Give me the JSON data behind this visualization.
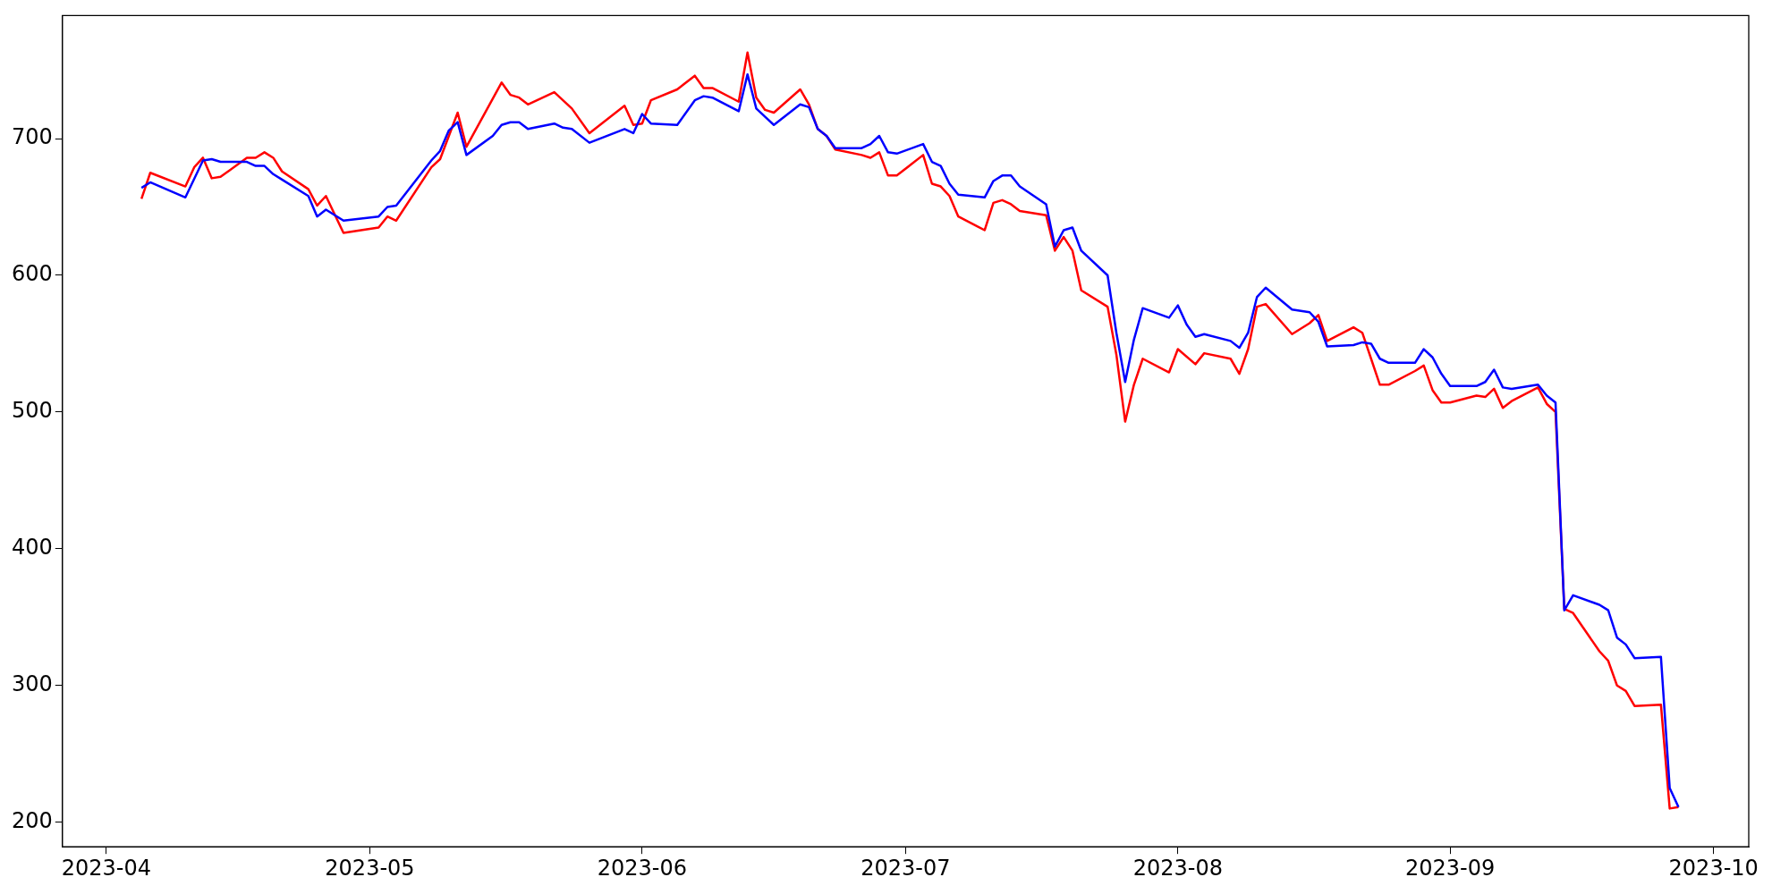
{
  "chart_data": {
    "type": "line",
    "xlim": [
      "2023-03-27",
      "2023-10-05"
    ],
    "ylim": [
      182,
      790
    ],
    "xticks": [
      "2023-04",
      "2023-05",
      "2023-06",
      "2023-07",
      "2023-08",
      "2023-09",
      "2023-10"
    ],
    "yticks": [
      200,
      300,
      400,
      500,
      600,
      700
    ],
    "marker": "none",
    "line_style": "solid",
    "series": [
      {
        "color": "#ff0000",
        "x": [
          "2023-04-05",
          "2023-04-06",
          "2023-04-10",
          "2023-04-11",
          "2023-04-12",
          "2023-04-13",
          "2023-04-14",
          "2023-04-17",
          "2023-04-18",
          "2023-04-19",
          "2023-04-20",
          "2023-04-21",
          "2023-04-24",
          "2023-04-25",
          "2023-04-26",
          "2023-04-28",
          "2023-05-02",
          "2023-05-03",
          "2023-05-04",
          "2023-05-08",
          "2023-05-09",
          "2023-05-11",
          "2023-05-12",
          "2023-05-16",
          "2023-05-17",
          "2023-05-18",
          "2023-05-19",
          "2023-05-22",
          "2023-05-24",
          "2023-05-26",
          "2023-05-30",
          "2023-05-31",
          "2023-06-01",
          "2023-06-02",
          "2023-06-05",
          "2023-06-07",
          "2023-06-08",
          "2023-06-09",
          "2023-06-12",
          "2023-06-13",
          "2023-06-14",
          "2023-06-15",
          "2023-06-16",
          "2023-06-19",
          "2023-06-20",
          "2023-06-21",
          "2023-06-22",
          "2023-06-23",
          "2023-06-26",
          "2023-06-27",
          "2023-06-28",
          "2023-06-29",
          "2023-06-30",
          "2023-07-03",
          "2023-07-04",
          "2023-07-05",
          "2023-07-06",
          "2023-07-07",
          "2023-07-10",
          "2023-07-11",
          "2023-07-12",
          "2023-07-13",
          "2023-07-14",
          "2023-07-17",
          "2023-07-18",
          "2023-07-19",
          "2023-07-20",
          "2023-07-21",
          "2023-07-24",
          "2023-07-25",
          "2023-07-26",
          "2023-07-27",
          "2023-07-28",
          "2023-07-31",
          "2023-08-01",
          "2023-08-03",
          "2023-08-04",
          "2023-08-07",
          "2023-08-08",
          "2023-08-09",
          "2023-08-10",
          "2023-08-11",
          "2023-08-14",
          "2023-08-16",
          "2023-08-17",
          "2023-08-18",
          "2023-08-21",
          "2023-08-22",
          "2023-08-23",
          "2023-08-24",
          "2023-08-25",
          "2023-08-28",
          "2023-08-29",
          "2023-08-30",
          "2023-08-31",
          "2023-09-01",
          "2023-09-04",
          "2023-09-05",
          "2023-09-06",
          "2023-09-07",
          "2023-09-08",
          "2023-09-11",
          "2023-09-12",
          "2023-09-13",
          "2023-09-14",
          "2023-09-15",
          "2023-09-18",
          "2023-09-19",
          "2023-09-20",
          "2023-09-21",
          "2023-09-22",
          "2023-09-25",
          "2023-09-26",
          "2023-09-27"
        ],
        "values": [
          656,
          675,
          665,
          679,
          686,
          671,
          672,
          686,
          686,
          690,
          686,
          676,
          663,
          651,
          658,
          631,
          635,
          643,
          640,
          679,
          685,
          719,
          694,
          741,
          732,
          730,
          725,
          734,
          722,
          704,
          724,
          710,
          711,
          728,
          736,
          746,
          737,
          737,
          727,
          763,
          730,
          721,
          719,
          736,
          725,
          707,
          702,
          692,
          688,
          686,
          690,
          673,
          673,
          688,
          667,
          665,
          658,
          643,
          633,
          653,
          655,
          652,
          647,
          644,
          618,
          628,
          618,
          589,
          577,
          542,
          493,
          520,
          539,
          529,
          546,
          535,
          543,
          539,
          528,
          546,
          577,
          579,
          557,
          565,
          571,
          552,
          562,
          558,
          539,
          520,
          520,
          530,
          534,
          516,
          507,
          507,
          512,
          511,
          517,
          503,
          508,
          518,
          506,
          500,
          356,
          353,
          325,
          318,
          300,
          296,
          285,
          286,
          210,
          211
        ]
      },
      {
        "color": "#0000ff",
        "x": [
          "2023-04-05",
          "2023-04-06",
          "2023-04-10",
          "2023-04-12",
          "2023-04-13",
          "2023-04-14",
          "2023-04-17",
          "2023-04-18",
          "2023-04-19",
          "2023-04-20",
          "2023-04-21",
          "2023-04-24",
          "2023-04-25",
          "2023-04-26",
          "2023-04-28",
          "2023-05-02",
          "2023-05-03",
          "2023-05-04",
          "2023-05-08",
          "2023-05-09",
          "2023-05-10",
          "2023-05-11",
          "2023-05-12",
          "2023-05-15",
          "2023-05-16",
          "2023-05-17",
          "2023-05-18",
          "2023-05-19",
          "2023-05-22",
          "2023-05-23",
          "2023-05-24",
          "2023-05-26",
          "2023-05-30",
          "2023-05-31",
          "2023-06-01",
          "2023-06-02",
          "2023-06-05",
          "2023-06-07",
          "2023-06-08",
          "2023-06-09",
          "2023-06-12",
          "2023-06-13",
          "2023-06-14",
          "2023-06-15",
          "2023-06-16",
          "2023-06-19",
          "2023-06-20",
          "2023-06-21",
          "2023-06-22",
          "2023-06-23",
          "2023-06-26",
          "2023-06-27",
          "2023-06-28",
          "2023-06-29",
          "2023-06-30",
          "2023-07-03",
          "2023-07-04",
          "2023-07-05",
          "2023-07-06",
          "2023-07-07",
          "2023-07-10",
          "2023-07-11",
          "2023-07-12",
          "2023-07-13",
          "2023-07-14",
          "2023-07-17",
          "2023-07-18",
          "2023-07-19",
          "2023-07-20",
          "2023-07-21",
          "2023-07-24",
          "2023-07-25",
          "2023-07-26",
          "2023-07-27",
          "2023-07-28",
          "2023-07-31",
          "2023-08-01",
          "2023-08-02",
          "2023-08-03",
          "2023-08-04",
          "2023-08-07",
          "2023-08-08",
          "2023-08-09",
          "2023-08-10",
          "2023-08-11",
          "2023-08-14",
          "2023-08-16",
          "2023-08-17",
          "2023-08-18",
          "2023-08-21",
          "2023-08-22",
          "2023-08-23",
          "2023-08-24",
          "2023-08-25",
          "2023-08-28",
          "2023-08-29",
          "2023-08-30",
          "2023-08-31",
          "2023-09-01",
          "2023-09-04",
          "2023-09-05",
          "2023-09-06",
          "2023-09-07",
          "2023-09-08",
          "2023-09-11",
          "2023-09-12",
          "2023-09-13",
          "2023-09-14",
          "2023-09-15",
          "2023-09-18",
          "2023-09-19",
          "2023-09-20",
          "2023-09-21",
          "2023-09-22",
          "2023-09-25",
          "2023-09-26",
          "2023-09-27"
        ],
        "values": [
          664,
          668,
          657,
          684,
          685,
          683,
          683,
          680,
          680,
          674,
          670,
          658,
          643,
          648,
          640,
          643,
          650,
          651,
          684,
          691,
          706,
          712,
          688,
          702,
          710,
          712,
          712,
          707,
          711,
          708,
          707,
          697,
          707,
          704,
          718,
          711,
          710,
          728,
          731,
          730,
          720,
          747,
          722,
          716,
          710,
          725,
          723,
          707,
          702,
          693,
          693,
          696,
          702,
          690,
          689,
          696,
          683,
          680,
          667,
          659,
          657,
          669,
          673,
          673,
          665,
          652,
          621,
          633,
          635,
          618,
          600,
          558,
          522,
          553,
          576,
          569,
          578,
          564,
          555,
          557,
          552,
          547,
          558,
          584,
          591,
          575,
          573,
          566,
          548,
          549,
          551,
          550,
          539,
          536,
          536,
          546,
          540,
          528,
          519,
          519,
          522,
          531,
          518,
          517,
          520,
          512,
          507,
          355,
          366,
          359,
          355,
          335,
          330,
          320,
          321,
          225,
          211
        ]
      }
    ]
  }
}
